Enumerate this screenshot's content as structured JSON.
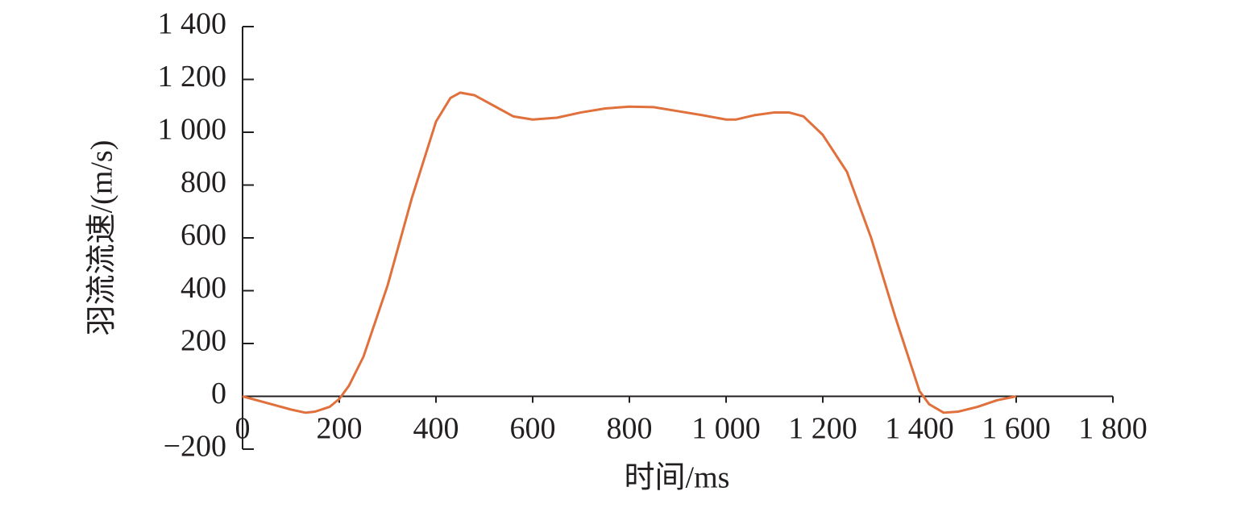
{
  "chart_data": {
    "type": "line",
    "x_label": "时间/ms",
    "y_label": "羽流流速/(m/s)",
    "x": [
      0,
      50,
      100,
      130,
      150,
      180,
      200,
      220,
      250,
      300,
      350,
      400,
      430,
      450,
      480,
      520,
      560,
      600,
      650,
      700,
      750,
      800,
      850,
      900,
      950,
      1000,
      1020,
      1060,
      1100,
      1130,
      1160,
      1200,
      1250,
      1300,
      1350,
      1400,
      1420,
      1450,
      1480,
      1520,
      1560,
      1600
    ],
    "series": [
      {
        "name": "羽流流速",
        "color": "#e0703c",
        "values": [
          0,
          -25,
          -50,
          -62,
          -58,
          -40,
          -10,
          40,
          150,
          420,
          750,
          1040,
          1130,
          1150,
          1140,
          1100,
          1060,
          1048,
          1055,
          1075,
          1090,
          1097,
          1095,
          1080,
          1065,
          1048,
          1048,
          1065,
          1075,
          1075,
          1060,
          990,
          850,
          600,
          300,
          20,
          -30,
          -62,
          -58,
          -40,
          -15,
          0
        ]
      }
    ],
    "xlim": [
      0,
      1800
    ],
    "ylim": [
      -200,
      1400
    ],
    "xticks": [
      0,
      200,
      400,
      600,
      800,
      {
        "value": 1000,
        "label": "1 000"
      },
      {
        "value": 1200,
        "label": "1 200"
      },
      {
        "value": 1400,
        "label": "1 400"
      },
      {
        "value": 1600,
        "label": "1 600"
      },
      {
        "value": 1800,
        "label": "1 800"
      }
    ],
    "yticks": [
      {
        "value": -200,
        "label": "−200"
      },
      0,
      200,
      400,
      600,
      800,
      {
        "value": 1000,
        "label": "1 000"
      },
      {
        "value": 1200,
        "label": "1 200"
      },
      {
        "value": 1400,
        "label": "1 400"
      }
    ]
  }
}
